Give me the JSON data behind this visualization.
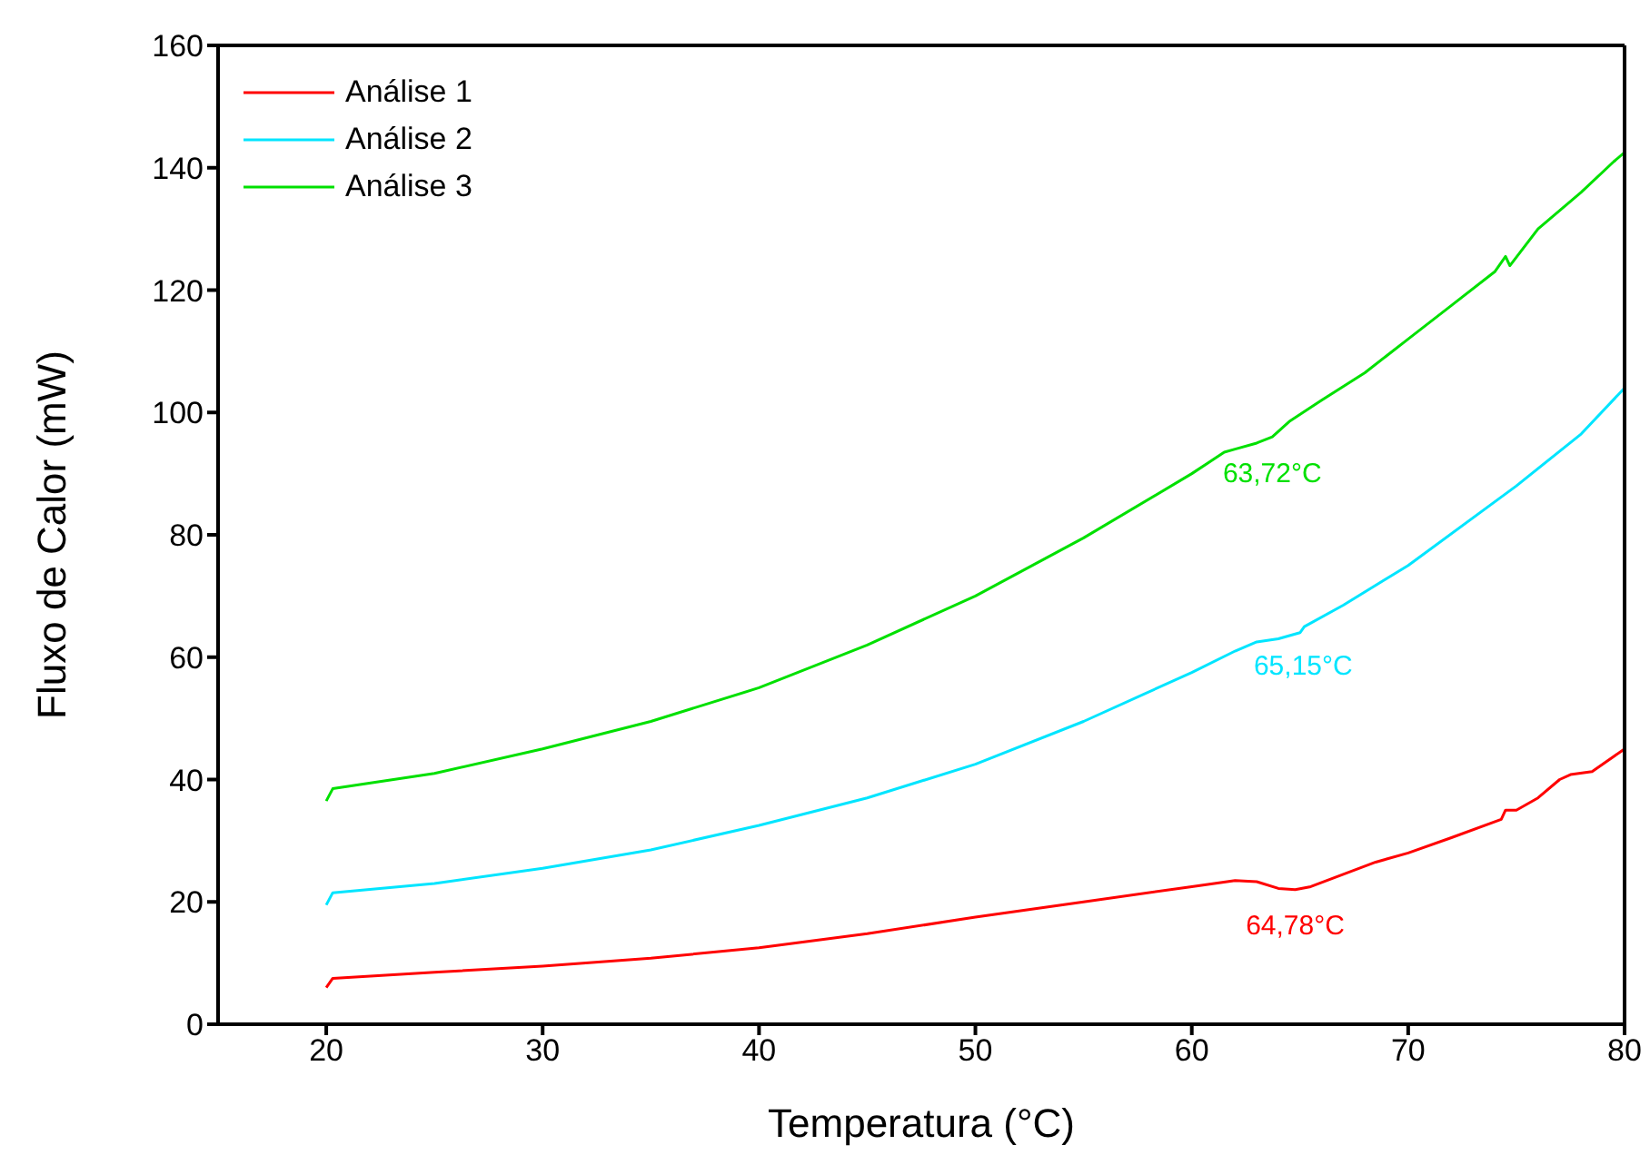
{
  "chart_data": {
    "type": "line",
    "xlabel": "Temperatura (°C)",
    "ylabel": "Fluxo de Calor (mW)",
    "xlim": [
      15,
      80
    ],
    "xticks": [
      20,
      30,
      40,
      50,
      60,
      70,
      80
    ],
    "ylim": [
      0,
      160
    ],
    "yticks": [
      0,
      20,
      40,
      60,
      80,
      100,
      120,
      140,
      160
    ],
    "grid": false,
    "legend": "top left",
    "line_style": "solid",
    "marker": "none",
    "series": [
      {
        "name": "Análise 1",
        "color": "#ff0000",
        "x": [
          20,
          20.3,
          25,
          30,
          35,
          40,
          45,
          50,
          55,
          60,
          62,
          63,
          64,
          64.78,
          65.5,
          67,
          68.5,
          70,
          72,
          74.3,
          74.5,
          75,
          76,
          77,
          77.5,
          78.5,
          80
        ],
        "values": [
          6,
          7.5,
          8.5,
          9.5,
          10.8,
          12.5,
          14.8,
          17.5,
          20,
          22.5,
          23.5,
          23.3,
          22.2,
          22,
          22.5,
          24.5,
          26.5,
          28,
          30.5,
          33.5,
          35,
          35,
          37,
          40,
          40.8,
          41.3,
          45
        ]
      },
      {
        "name": "Análise 2",
        "color": "#00e5ff",
        "x": [
          20,
          20.3,
          25,
          30,
          35,
          40,
          45,
          50,
          55,
          60,
          62,
          63,
          64,
          65,
          65.2,
          67,
          70,
          75,
          78,
          80
        ],
        "values": [
          19.5,
          21.5,
          23,
          25.5,
          28.5,
          32.5,
          37,
          42.5,
          49.5,
          57.5,
          61,
          62.5,
          63,
          64,
          65,
          68.5,
          75,
          88,
          96.5,
          104
        ]
      },
      {
        "name": "Análise 3",
        "color": "#00e000",
        "x": [
          20,
          20.3,
          25,
          30,
          35,
          40,
          45,
          50,
          55,
          60,
          61.5,
          62,
          63,
          63.72,
          64.5,
          66,
          68,
          70,
          72,
          74,
          74.5,
          74.7,
          76,
          78,
          79.5,
          80
        ],
        "values": [
          36.5,
          38.5,
          41,
          45,
          49.5,
          55,
          62,
          70,
          79.5,
          90,
          93.5,
          94,
          95,
          96,
          98.5,
          102,
          106.5,
          112,
          117.5,
          123,
          125.5,
          124,
          130,
          136,
          141,
          142.5
        ]
      }
    ],
    "annotations": [
      {
        "text": "64,78°C",
        "x": 64.78,
        "y": 22
      },
      {
        "text": "65,15°C",
        "x": 65.15,
        "y": 64.5
      },
      {
        "text": "63,72°C",
        "x": 63.72,
        "y": 96
      }
    ]
  }
}
